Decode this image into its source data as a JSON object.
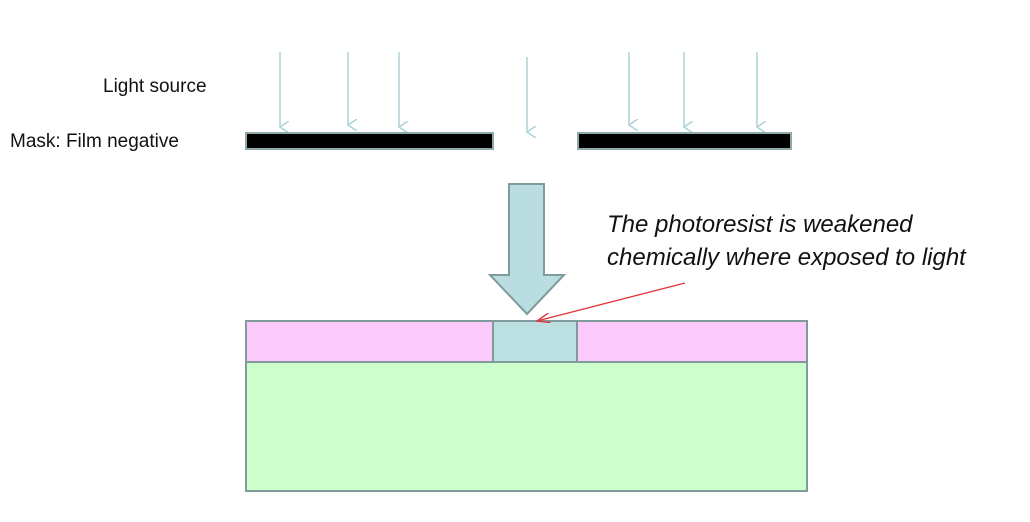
{
  "labels": {
    "light_source": "Light source",
    "mask": "Mask: Film negative"
  },
  "annotation": {
    "line1": "The photoresist is weakened",
    "line2": "chemically where exposed to light"
  },
  "colors": {
    "light_ray": "#a9d3d6",
    "mask_bar": "#000000",
    "mask_border": "#8fa9a9",
    "big_arrow_fill": "#b9dde0",
    "big_arrow_stroke": "#7f9b9c",
    "photoresist": "#fccbfc",
    "exposed_region": "#bcdfe2",
    "substrate": "#ccffcc",
    "outline": "#7f9b9c",
    "pointer": "#e0363a"
  }
}
